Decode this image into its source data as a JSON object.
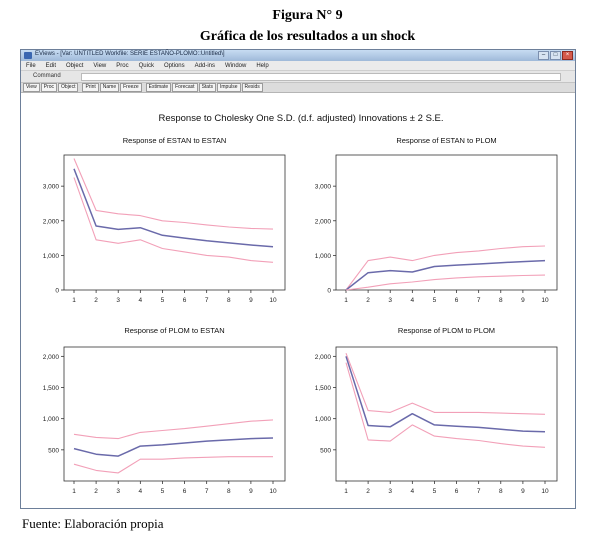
{
  "figure": {
    "number": "Figura N° 9",
    "caption": "Gráfica de los resultados a un shock",
    "source": "Fuente: Elaboración propia"
  },
  "window": {
    "title": "EViews - [Var: UNTITLED   Workfile: SERIE ESTAÑO-PLOMO::Untitled\\]",
    "menu": [
      "File",
      "Edit",
      "Object",
      "View",
      "Proc",
      "Quick",
      "Options",
      "Add-ins",
      "Window",
      "Help"
    ],
    "command_tab": "Command",
    "toolbar": [
      "View",
      "Proc",
      "Object",
      "Print",
      "Name",
      "Freeze",
      "Estimate",
      "Forecast",
      "Stats",
      "Impulse",
      "Resids"
    ]
  },
  "colors": {
    "response": "#6a6aaa",
    "bands": "#f2a0b8",
    "axis": "#333333"
  },
  "chart_data": {
    "type": "line",
    "title": "Response to Cholesky One S.D. (d.f. adjusted) Innovations ± 2 S.E.",
    "x": [
      1,
      2,
      3,
      4,
      5,
      6,
      7,
      8,
      9,
      10
    ],
    "panels": [
      {
        "title": "Response of ESTAN to ESTAN",
        "ylim": [
          0,
          3900
        ],
        "yticks": [
          0,
          1000,
          2000,
          3000
        ],
        "ytick_labels": [
          "0",
          "1,000",
          "2,000",
          "3,000"
        ],
        "series": [
          {
            "role": "upper",
            "values": [
              3800,
              2300,
              2200,
              2150,
              2000,
              1950,
              1880,
              1820,
              1780,
              1760
            ]
          },
          {
            "role": "response",
            "values": [
              3500,
              1850,
              1750,
              1800,
              1580,
              1500,
              1420,
              1360,
              1300,
              1250
            ]
          },
          {
            "role": "lower",
            "values": [
              3250,
              1450,
              1350,
              1450,
              1200,
              1100,
              1000,
              950,
              850,
              800
            ]
          }
        ]
      },
      {
        "title": "Response of ESTAN to PLOM",
        "ylim": [
          0,
          3900
        ],
        "yticks": [
          0,
          1000,
          2000,
          3000
        ],
        "ytick_labels": [
          "0",
          "1,000",
          "2,000",
          "3,000"
        ],
        "series": [
          {
            "role": "upper",
            "values": [
              0,
              850,
              950,
              850,
              1000,
              1080,
              1130,
              1200,
              1250,
              1270
            ]
          },
          {
            "role": "response",
            "values": [
              0,
              500,
              560,
              520,
              680,
              720,
              750,
              790,
              820,
              850
            ]
          },
          {
            "role": "lower",
            "values": [
              0,
              80,
              180,
              230,
              300,
              350,
              380,
              400,
              420,
              430
            ]
          }
        ]
      },
      {
        "title": "Response of PLOM to ESTAN",
        "ylim": [
          0,
          2150
        ],
        "yticks": [
          500,
          1000,
          1500,
          2000
        ],
        "ytick_labels": [
          "500",
          "1,000",
          "1,500",
          "2,000"
        ],
        "series": [
          {
            "role": "upper",
            "values": [
              750,
              700,
              680,
              780,
              810,
              840,
              880,
              920,
              960,
              980
            ]
          },
          {
            "role": "response",
            "values": [
              520,
              430,
              400,
              560,
              580,
              610,
              640,
              660,
              680,
              690
            ]
          },
          {
            "role": "lower",
            "values": [
              270,
              170,
              130,
              350,
              350,
              370,
              380,
              390,
              390,
              390
            ]
          }
        ]
      },
      {
        "title": "Response of PLOM to PLOM",
        "ylim": [
          0,
          2150
        ],
        "yticks": [
          500,
          1000,
          1500,
          2000
        ],
        "ytick_labels": [
          "500",
          "1,000",
          "1,500",
          "2,000"
        ],
        "series": [
          {
            "role": "upper",
            "values": [
              2050,
              1130,
              1100,
              1250,
              1100,
              1100,
              1100,
              1090,
              1080,
              1070
            ]
          },
          {
            "role": "response",
            "values": [
              2000,
              890,
              870,
              1080,
              900,
              880,
              860,
              830,
              800,
              790
            ]
          },
          {
            "role": "lower",
            "values": [
              1900,
              660,
              640,
              900,
              720,
              680,
              650,
              600,
              560,
              540
            ]
          }
        ]
      }
    ]
  }
}
